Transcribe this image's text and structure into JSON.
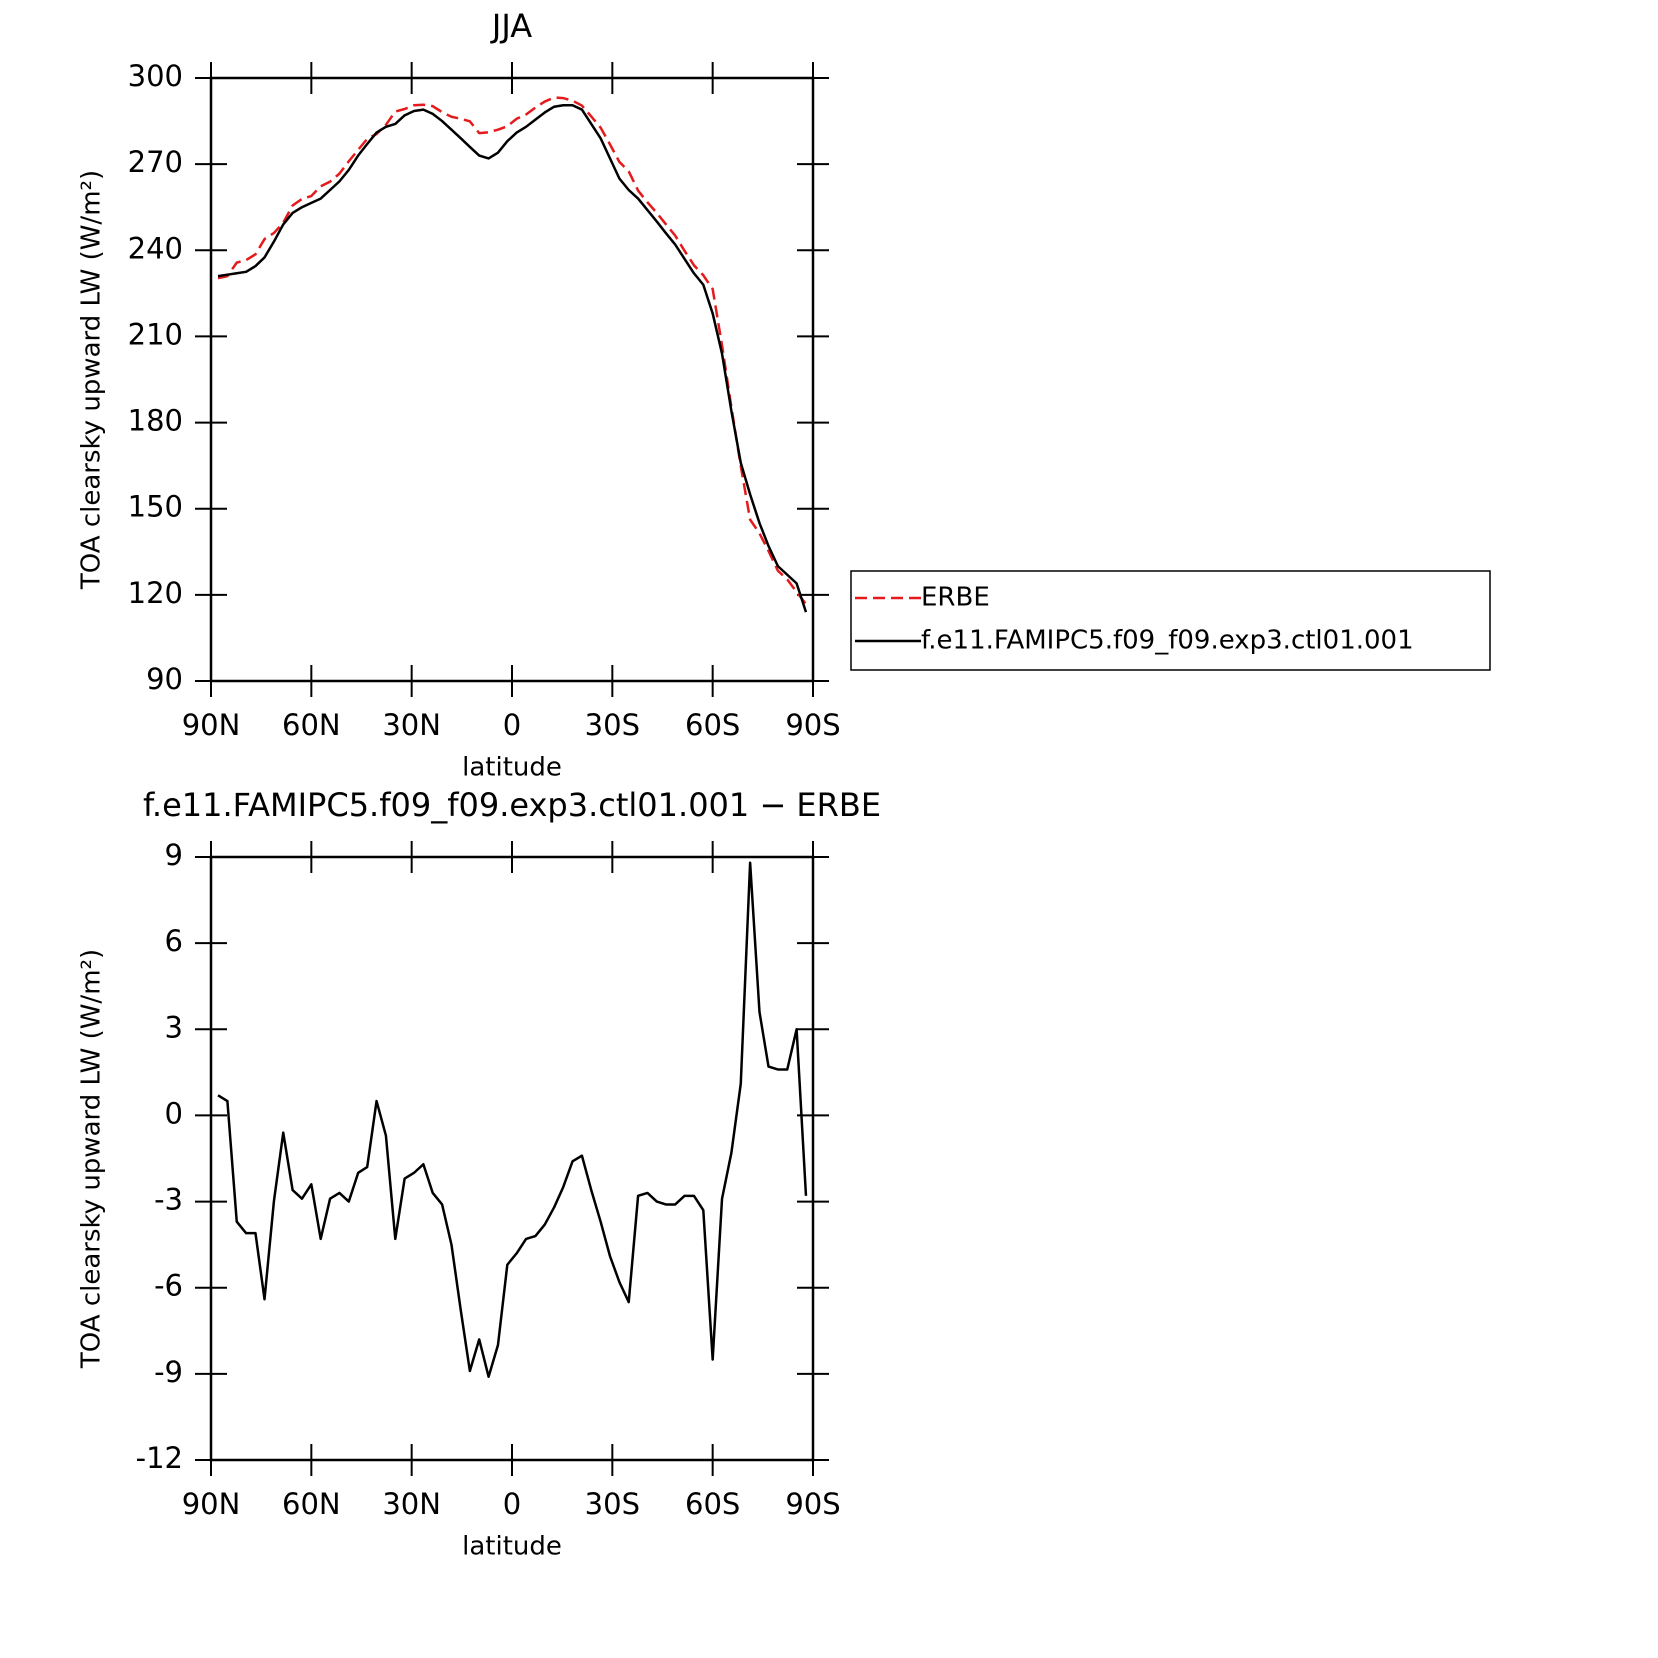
{
  "chart_data": [
    {
      "type": "line",
      "title": "JJA",
      "xlabel": "latitude",
      "ylabel": "TOA clearsky upward LW (W/m²)",
      "x": [
        87.9,
        85.1,
        82.3,
        79.5,
        76.7,
        74.0,
        71.2,
        68.4,
        65.6,
        62.8,
        60.0,
        57.2,
        54.4,
        51.6,
        48.8,
        46.0,
        43.3,
        40.5,
        37.7,
        34.9,
        32.1,
        29.3,
        26.5,
        23.7,
        20.9,
        18.1,
        15.3,
        12.6,
        9.8,
        7.0,
        4.2,
        1.4,
        -1.4,
        -4.2,
        -7.0,
        -9.8,
        -12.6,
        -15.3,
        -18.1,
        -20.9,
        -23.7,
        -26.5,
        -29.3,
        -32.1,
        -34.9,
        -37.7,
        -40.5,
        -43.3,
        -46.0,
        -48.8,
        -51.6,
        -54.4,
        -57.2,
        -60.0,
        -62.8,
        -65.6,
        -68.4,
        -71.2,
        -74.0,
        -76.7,
        -79.5,
        -82.3,
        -85.1,
        -87.9
      ],
      "xlim": [
        90,
        -90
      ],
      "xticks": [
        {
          "value": 90,
          "label": "90N"
        },
        {
          "value": 60,
          "label": "60N"
        },
        {
          "value": 30,
          "label": "30N"
        },
        0,
        {
          "value": -30,
          "label": "30S"
        },
        {
          "value": -60,
          "label": "60S"
        },
        {
          "value": -90,
          "label": "90S"
        }
      ],
      "ylim": [
        90,
        300
      ],
      "yticks": [
        90,
        120,
        150,
        180,
        210,
        240,
        270,
        300
      ],
      "series": [
        {
          "name": "ERBE",
          "color": "#e41a1c",
          "dash": true,
          "values": [
            230.3,
            231.0,
            235.7,
            236.6,
            238.6,
            243.9,
            246.0,
            249.6,
            255.6,
            257.9,
            258.9,
            262.3,
            263.9,
            266.7,
            271.0,
            275.0,
            278.8,
            280.5,
            283.7,
            288.3,
            289.2,
            290.5,
            290.7,
            290.2,
            288.1,
            286.5,
            285.8,
            284.9,
            280.8,
            281.1,
            282.0,
            283.2,
            285.8,
            287.3,
            289.7,
            291.8,
            293.2,
            293.0,
            292.1,
            290.4,
            286.6,
            282.7,
            276.9,
            270.8,
            267.5,
            260.8,
            256.7,
            253.0,
            249.1,
            245.1,
            239.8,
            234.8,
            231.3,
            226.5,
            206.9,
            185.3,
            164.9,
            146.2,
            141.4,
            135.3,
            128.4,
            125.4,
            121.0,
            116.8
          ]
        },
        {
          "name": "f.e11.FAMIPC5.f09_f09.exp3.ctl01.001",
          "color": "#000000",
          "dash": false,
          "values": [
            231.0,
            231.5,
            232.0,
            232.5,
            234.5,
            237.5,
            243.0,
            249.0,
            253.0,
            255.0,
            256.5,
            258.0,
            261.0,
            264.0,
            268.0,
            273.0,
            277.0,
            281.0,
            283.0,
            284.0,
            287.0,
            288.5,
            289.0,
            287.5,
            285.0,
            282.0,
            279.0,
            276.0,
            273.0,
            272.0,
            274.0,
            278.0,
            281.0,
            283.0,
            285.5,
            288.0,
            290.0,
            290.5,
            290.5,
            289.0,
            284.0,
            279.0,
            272.0,
            265.0,
            261.0,
            258.0,
            254.0,
            250.0,
            246.0,
            242.0,
            237.0,
            232.0,
            228.0,
            218.0,
            204.0,
            184.0,
            166.0,
            155.0,
            145.0,
            137.0,
            130.0,
            127.0,
            124.0,
            114.0
          ]
        }
      ]
    },
    {
      "type": "line",
      "title": "f.e11.FAMIPC5.f09_f09.exp3.ctl01.001 − ERBE",
      "xlabel": "latitude",
      "ylabel": "TOA clearsky upward LW (W/m²)",
      "x": [
        87.9,
        85.1,
        82.3,
        79.5,
        76.7,
        74.0,
        71.2,
        68.4,
        65.6,
        62.8,
        60.0,
        57.2,
        54.4,
        51.6,
        48.8,
        46.0,
        43.3,
        40.5,
        37.7,
        34.9,
        32.1,
        29.3,
        26.5,
        23.7,
        20.9,
        18.1,
        15.3,
        12.6,
        9.8,
        7.0,
        4.2,
        1.4,
        -1.4,
        -4.2,
        -7.0,
        -9.8,
        -12.6,
        -15.3,
        -18.1,
        -20.9,
        -23.7,
        -26.5,
        -29.3,
        -32.1,
        -34.9,
        -37.7,
        -40.5,
        -43.3,
        -46.0,
        -48.8,
        -51.6,
        -54.4,
        -57.2,
        -60.0,
        -62.8,
        -65.6,
        -68.4,
        -71.2,
        -74.0,
        -76.7,
        -79.5,
        -82.3,
        -85.1,
        -87.9
      ],
      "xlim": [
        90,
        -90
      ],
      "xticks": [
        {
          "value": 90,
          "label": "90N"
        },
        {
          "value": 60,
          "label": "60N"
        },
        {
          "value": 30,
          "label": "30N"
        },
        0,
        {
          "value": -30,
          "label": "30S"
        },
        {
          "value": -60,
          "label": "60S"
        },
        {
          "value": -90,
          "label": "90S"
        }
      ],
      "ylim": [
        -12,
        9
      ],
      "yticks": [
        -12,
        -9,
        -6,
        -3,
        0,
        3,
        6,
        9
      ],
      "series": [
        {
          "color": "#000000",
          "dash": false,
          "values": [
            0.7,
            0.5,
            -3.7,
            -4.1,
            -4.1,
            -6.4,
            -3,
            -0.6,
            -2.6,
            -2.9,
            -2.4,
            -4.3,
            -2.9,
            -2.7,
            -3,
            -2,
            -1.8,
            0.5,
            -0.7,
            -4.3,
            -2.2,
            -2,
            -1.7,
            -2.7,
            -3.1,
            -4.5,
            -6.8,
            -8.9,
            -7.8,
            -9.1,
            -8,
            -5.2,
            -4.8,
            -4.3,
            -4.2,
            -3.8,
            -3.2,
            -2.5,
            -1.6,
            -1.4,
            -2.6,
            -3.7,
            -4.9,
            -5.8,
            -6.5,
            -2.8,
            -2.7,
            -3,
            -3.1,
            -3.1,
            -2.8,
            -2.8,
            -3.3,
            -8.5,
            -2.9,
            -1.3,
            1.1,
            8.8,
            3.6,
            1.7,
            1.6,
            1.6,
            3,
            -2.8
          ]
        }
      ]
    }
  ]
}
